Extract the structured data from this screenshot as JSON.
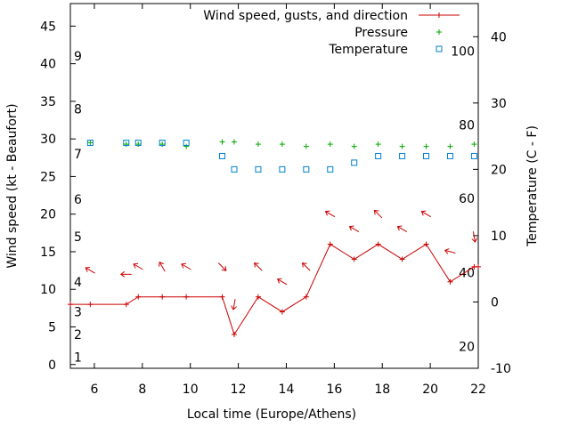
{
  "chart_data": {
    "type": "line",
    "xlabel": "Local time (Europe/Athens)",
    "ylabel": "Wind speed (kt - Beaufort)",
    "y2label": "Temperature (C - F)",
    "xlim": [
      5,
      22
    ],
    "ylim": [
      -0.5,
      48
    ],
    "y2lim": [
      -10,
      45
    ],
    "x_ticks": [
      6,
      8,
      10,
      12,
      14,
      16,
      18,
      20,
      22
    ],
    "y_ticks": [
      0,
      5,
      10,
      15,
      20,
      25,
      30,
      35,
      40,
      45
    ],
    "y2_ticks": [
      -10,
      0,
      10,
      20,
      30,
      40
    ],
    "beaufort_labels": [
      {
        "label": "1",
        "y": 1
      },
      {
        "label": "2",
        "y": 4
      },
      {
        "label": "3",
        "y": 7
      },
      {
        "label": "4",
        "y": 11
      },
      {
        "label": "5",
        "y": 17
      },
      {
        "label": "6",
        "y": 22
      },
      {
        "label": "7",
        "y": 28
      },
      {
        "label": "8",
        "y": 34
      },
      {
        "label": "9",
        "y": 41
      }
    ],
    "fahrenheit_labels": [
      {
        "label": "20",
        "y2": -6.7
      },
      {
        "label": "40",
        "y2": 4.4
      },
      {
        "label": "60",
        "y2": 15.6
      },
      {
        "label": "80",
        "y2": 26.7
      },
      {
        "label": "100",
        "y2": 37.8
      }
    ],
    "legend": [
      {
        "name": "Wind speed, gusts, and direction",
        "color": "#cc0000",
        "marker": "line-plus"
      },
      {
        "name": "Pressure",
        "color": "#00aa00",
        "marker": "plus"
      },
      {
        "name": "Temperature",
        "color": "#0080cc",
        "marker": "square"
      }
    ],
    "legend_position": "top-right",
    "grid": false,
    "series": [
      {
        "name": "Wind speed, gusts, and direction",
        "axis": "y",
        "color": "#cc0000",
        "x": [
          5.0,
          5.83,
          7.33,
          7.83,
          8.83,
          9.83,
          11.33,
          11.83,
          12.83,
          13.83,
          14.83,
          15.83,
          16.83,
          17.83,
          18.83,
          19.83,
          20.83,
          21.83,
          22.0
        ],
        "values": [
          8,
          8,
          8,
          9,
          9,
          9,
          9,
          4,
          9,
          7,
          9,
          16,
          14,
          16,
          14,
          16,
          11,
          13,
          13
        ]
      },
      {
        "name": "Pressure",
        "axis": "y",
        "color": "#00aa00",
        "x": [
          5.83,
          7.33,
          7.83,
          8.83,
          9.83,
          11.33,
          11.83,
          12.83,
          13.83,
          14.83,
          15.83,
          16.83,
          17.83,
          18.83,
          19.83,
          20.83,
          21.83
        ],
        "values": [
          29.5,
          29.3,
          29.3,
          29.3,
          29.0,
          29.6,
          29.6,
          29.3,
          29.3,
          29.0,
          29.3,
          29.0,
          29.3,
          29.0,
          29.0,
          29.0,
          29.3
        ]
      },
      {
        "name": "Temperature",
        "axis": "y2",
        "color": "#0080cc",
        "x": [
          5.83,
          7.33,
          7.83,
          8.83,
          9.83,
          11.33,
          11.83,
          12.83,
          13.83,
          14.83,
          15.83,
          16.83,
          17.83,
          18.83,
          19.83,
          20.83,
          21.83
        ],
        "values": [
          24,
          24,
          24,
          24,
          24,
          22,
          20,
          20,
          20,
          20,
          20,
          21,
          22,
          22,
          22,
          22,
          22
        ]
      }
    ],
    "wind_arrows": [
      {
        "x": 5.83,
        "y": 12.5,
        "angle": -150
      },
      {
        "x": 7.33,
        "y": 12.0,
        "angle": 180
      },
      {
        "x": 7.83,
        "y": 13.0,
        "angle": -150
      },
      {
        "x": 8.83,
        "y": 13.0,
        "angle": -120
      },
      {
        "x": 9.83,
        "y": 13.0,
        "angle": -150
      },
      {
        "x": 11.33,
        "y": 13.0,
        "angle": 45
      },
      {
        "x": 11.83,
        "y": 8.0,
        "angle": 100
      },
      {
        "x": 12.83,
        "y": 13.0,
        "angle": -135
      },
      {
        "x": 13.83,
        "y": 11.0,
        "angle": -150
      },
      {
        "x": 14.83,
        "y": 13.0,
        "angle": -135
      },
      {
        "x": 15.83,
        "y": 20.0,
        "angle": -150
      },
      {
        "x": 16.83,
        "y": 18.0,
        "angle": -150
      },
      {
        "x": 17.83,
        "y": 20.0,
        "angle": -135
      },
      {
        "x": 18.83,
        "y": 18.0,
        "angle": -150
      },
      {
        "x": 19.83,
        "y": 20.0,
        "angle": -150
      },
      {
        "x": 20.83,
        "y": 15.0,
        "angle": -165
      },
      {
        "x": 21.83,
        "y": 17.0,
        "angle": 80
      }
    ]
  }
}
